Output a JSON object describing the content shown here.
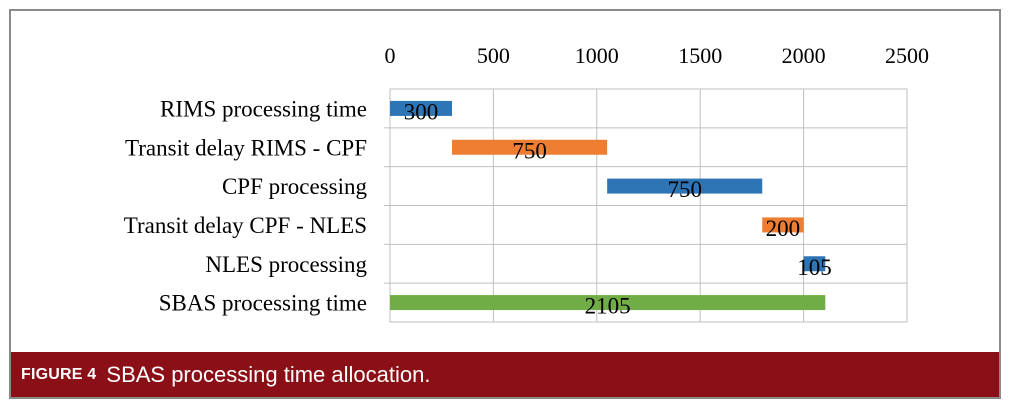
{
  "caption": {
    "label": "FIGURE 4",
    "text": "SBAS processing time allocation.",
    "background_color": "#8b0f17"
  },
  "chart_data": {
    "type": "bar",
    "orientation": "horizontal-stacked-gantt",
    "title": "",
    "xlabel": "",
    "ylabel": "",
    "xlim": [
      0,
      2500
    ],
    "x_ticks": [
      "0",
      "500",
      "1000",
      "1500",
      "2000",
      "2500"
    ],
    "x_axis_position": "top",
    "grid": true,
    "categories": [
      "RIMS processing time",
      "Transit delay RIMS - CPF",
      "CPF processing",
      "Transit delay CPF - NLES",
      "NLES processing",
      "SBAS processing time"
    ],
    "start": [
      0,
      300,
      1050,
      1800,
      2000,
      0
    ],
    "values": [
      300,
      750,
      750,
      200,
      105,
      2105
    ],
    "data_labels": [
      "300",
      "750",
      "750",
      "200",
      "105",
      "2105"
    ],
    "colors": [
      "#2e75b6",
      "#ed7d31",
      "#2e75b6",
      "#ed7d31",
      "#2e75b6",
      "#70ad47"
    ]
  }
}
